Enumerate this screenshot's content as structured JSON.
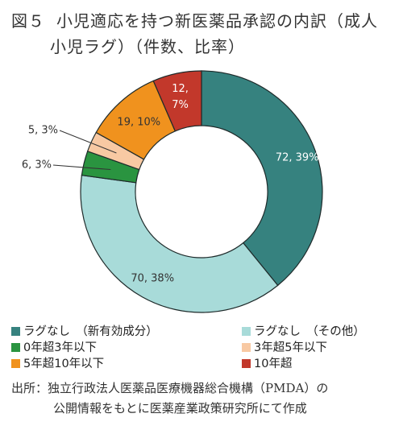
{
  "title": {
    "fig_label": "図５",
    "line1": "小児適応を持つ新医薬品承認の内訳（成人",
    "line2": "小児ラグ）（件数、比率）"
  },
  "chart_data": {
    "type": "pie",
    "style": "donut",
    "start": "12 o'clock, clockwise",
    "slices": [
      {
        "name": "ラグなし　（新有効成分）",
        "value": 72,
        "percent": 39,
        "label": "72, 39%",
        "color": "#36827f"
      },
      {
        "name": "ラグなし　（その他）",
        "value": 70,
        "percent": 38,
        "label": "70, 38%",
        "color": "#a8dbd9"
      },
      {
        "name": "0年超3年以下",
        "value": 6,
        "percent": 3,
        "label": "6, 3%",
        "color": "#2a9440"
      },
      {
        "name": "3年超5年以下",
        "value": 5,
        "percent": 3,
        "label": "5, 3%",
        "color": "#f8c9a3"
      },
      {
        "name": "5年超10年以下",
        "value": 19,
        "percent": 10,
        "label": "19, 10%",
        "color": "#f0921e"
      },
      {
        "name": "10年超",
        "value": 12,
        "percent": 7,
        "label": "12, 7%",
        "color": "#c2382b"
      }
    ],
    "legend_position": "bottom"
  },
  "source": {
    "line1": "出所：独立行政法人医薬品医療機器総合機構（PMDA）の",
    "line2": "公開情報をもとに医薬産業政策研究所にて作成"
  }
}
